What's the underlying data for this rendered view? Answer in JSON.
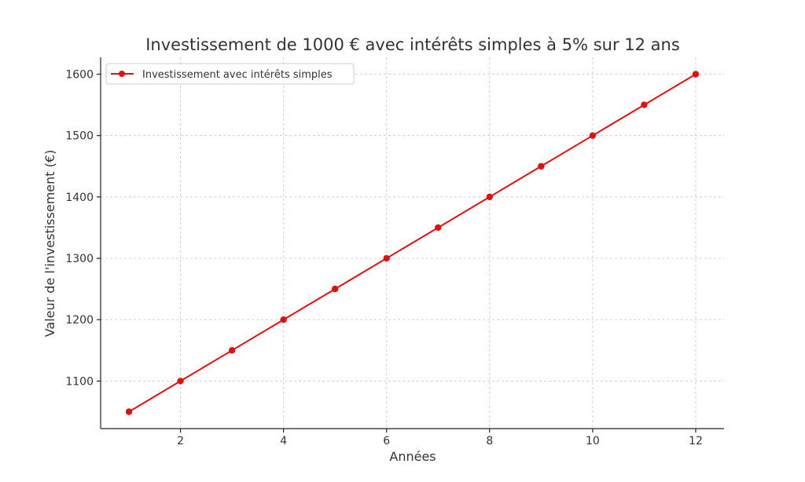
{
  "chart_data": {
    "type": "line",
    "title": "Investissement de 1000 € avec intérêts simples à 5% sur 12 ans",
    "xlabel": "Années",
    "ylabel": "Valeur de l'investissement (€)",
    "x": [
      1,
      2,
      3,
      4,
      5,
      6,
      7,
      8,
      9,
      10,
      11,
      12
    ],
    "series": [
      {
        "name": "Investissement avec intérêts simples",
        "values": [
          1050,
          1100,
          1150,
          1200,
          1250,
          1300,
          1350,
          1400,
          1450,
          1500,
          1550,
          1600
        ]
      }
    ],
    "xticks": [
      "2",
      "4",
      "6",
      "8",
      "10",
      "12"
    ],
    "yticks": [
      "1100",
      "1200",
      "1300",
      "1400",
      "1500",
      "1600"
    ],
    "xlim": [
      0.45,
      12.55
    ],
    "ylim": [
      1022.5,
      1627.5
    ],
    "grid": true,
    "legend_position": "top-left",
    "colors": {
      "series": "#dd1111"
    }
  }
}
